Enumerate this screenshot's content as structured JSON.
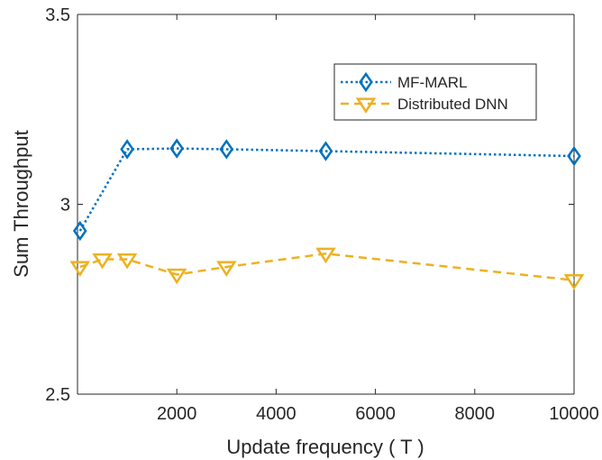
{
  "chart_data": {
    "type": "line",
    "xlabel": "Update frequency ( T )",
    "ylabel": "Sum Throughput",
    "xlim": [
      0,
      10000
    ],
    "ylim": [
      2.5,
      3.5
    ],
    "xticks": [
      2000,
      4000,
      6000,
      8000,
      10000
    ],
    "xtick_labels": [
      "2000",
      "4000",
      "6000",
      "8000",
      "10000"
    ],
    "yticks": [
      2.5,
      3,
      3.5
    ],
    "ytick_labels": [
      "2.5",
      "3",
      "3.5"
    ],
    "grid": false,
    "legend_position": "top-right",
    "series": [
      {
        "name": "MF-MARL",
        "color": "#0072BD",
        "line_style": "dotted",
        "marker": "diamond",
        "x": [
          50,
          1000,
          2000,
          3000,
          5000,
          10000
        ],
        "y": [
          2.93,
          3.145,
          3.147,
          3.145,
          3.14,
          3.127
        ]
      },
      {
        "name": "Distributed DNN",
        "color": "#EDB120",
        "line_style": "dashed",
        "marker": "triangle-down",
        "x": [
          50,
          500,
          1000,
          2000,
          3000,
          5000,
          10000
        ],
        "y": [
          2.835,
          2.855,
          2.855,
          2.815,
          2.835,
          2.87,
          2.8
        ]
      }
    ]
  }
}
